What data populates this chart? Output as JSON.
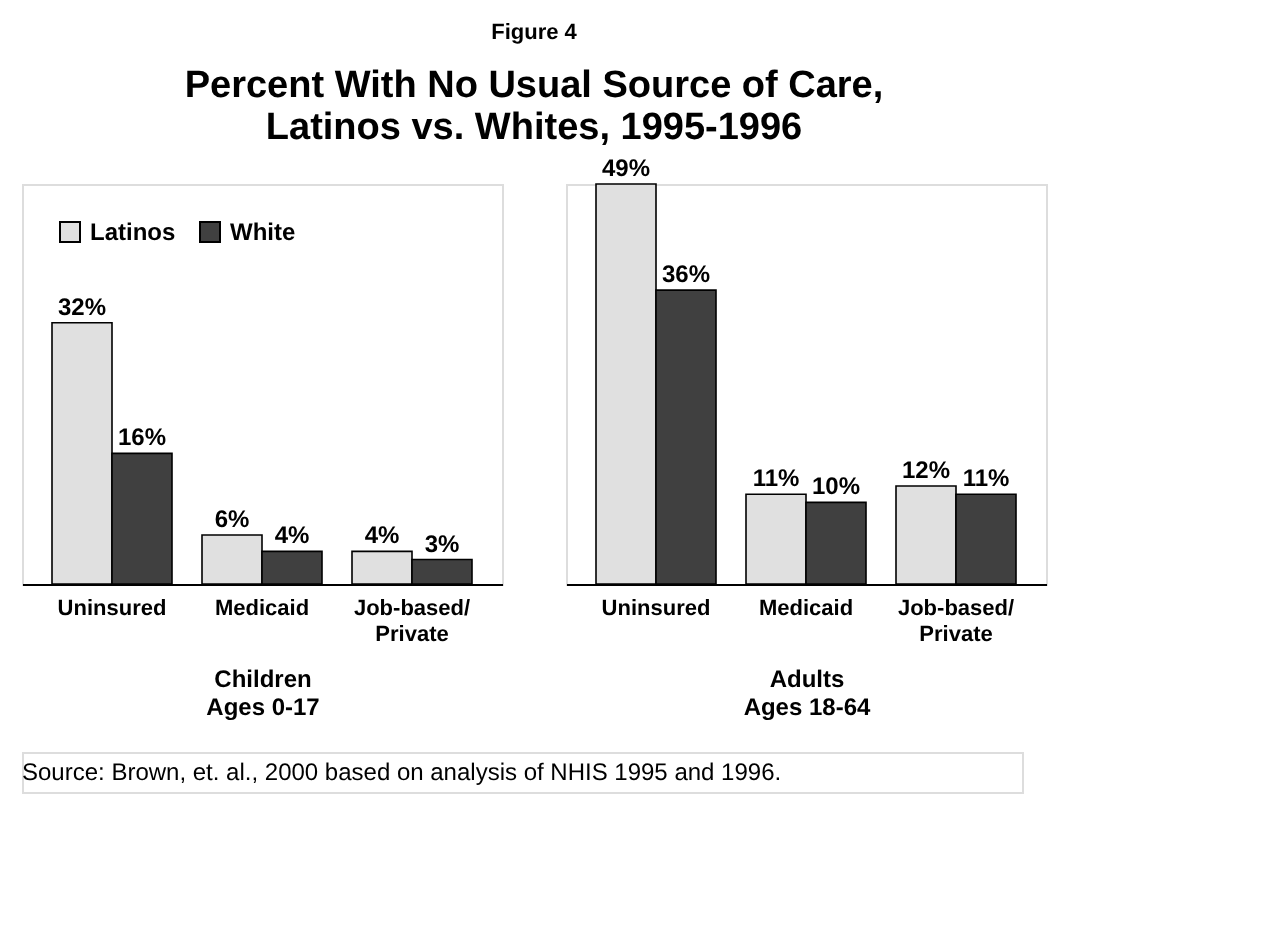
{
  "chart_data": [
    {
      "type": "bar",
      "title": "Figure 4",
      "subtitle": "Percent With No Usual Source of Care,\nLatinos vs. Whites, 1995-1996",
      "categories": [
        "Uninsured",
        "Medicaid",
        "Job-based/\nPrivate"
      ],
      "xlabel": "Children\nAges 0-17",
      "legend": "top left",
      "series": [
        {
          "name": "Latinos",
          "color": "#e0e0e0",
          "values": [
            32,
            6,
            4
          ],
          "value_labels": [
            "32%",
            "6%",
            "4%"
          ]
        },
        {
          "name": "White",
          "color": "#404040",
          "values": [
            16,
            4,
            3
          ],
          "value_labels": [
            "16%",
            "4%",
            "3%"
          ]
        }
      ]
    },
    {
      "type": "bar",
      "categories": [
        "Uninsured",
        "Medicaid",
        "Job-based/\nPrivate"
      ],
      "xlabel": "Adults\nAges 18-64",
      "annotations": [
        "Source:  Brown, et. al., 2000 based on analysis of NHIS 1995 and 1996."
      ],
      "series": [
        {
          "color": "#e0e0e0",
          "values": [
            49,
            11,
            12
          ],
          "value_labels": [
            "49%",
            "11%",
            "12%"
          ]
        },
        {
          "color": "#404040",
          "values": [
            36,
            10,
            11
          ],
          "value_labels": [
            "36%",
            "10%",
            "11%"
          ]
        }
      ]
    }
  ]
}
